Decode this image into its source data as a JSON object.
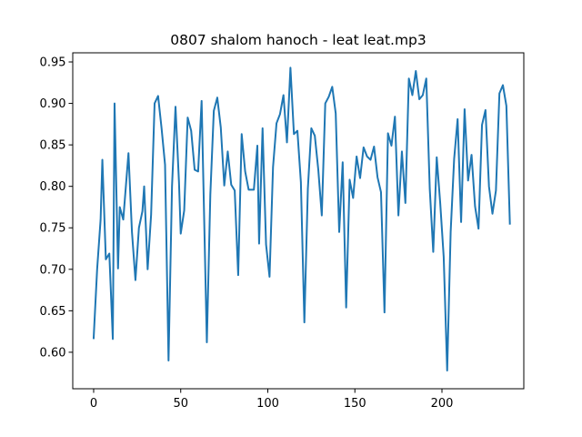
{
  "chart_data": {
    "type": "line",
    "title": "0807 shalom hanoch - leat leat.mp3",
    "xlabel": "",
    "ylabel": "",
    "xlim": [
      -12,
      247
    ],
    "ylim": [
      0.556,
      0.961
    ],
    "x_ticks": [
      0,
      50,
      100,
      150,
      200
    ],
    "y_ticks": [
      0.6,
      0.65,
      0.7,
      0.75,
      0.8,
      0.85,
      0.9,
      0.95
    ],
    "x_tick_labels": [
      "0",
      "50",
      "100",
      "150",
      "200"
    ],
    "y_tick_labels": [
      "0.60",
      "0.65",
      "0.70",
      "0.75",
      "0.80",
      "0.85",
      "0.90",
      "0.95"
    ],
    "grid": false,
    "legend": "none",
    "series": [
      {
        "color": "#1f77b4",
        "points": [
          [
            0,
            0.617
          ],
          [
            2,
            0.7
          ],
          [
            4,
            0.76
          ],
          [
            5,
            0.832
          ],
          [
            7,
            0.712
          ],
          [
            9,
            0.719
          ],
          [
            11,
            0.616
          ],
          [
            12,
            0.9
          ],
          [
            14,
            0.701
          ],
          [
            15,
            0.775
          ],
          [
            17,
            0.76
          ],
          [
            20,
            0.84
          ],
          [
            22,
            0.745
          ],
          [
            24,
            0.687
          ],
          [
            26,
            0.75
          ],
          [
            28,
            0.77
          ],
          [
            29,
            0.8
          ],
          [
            31,
            0.7
          ],
          [
            33,
            0.766
          ],
          [
            35,
            0.9
          ],
          [
            37,
            0.909
          ],
          [
            39,
            0.87
          ],
          [
            41,
            0.826
          ],
          [
            43,
            0.59
          ],
          [
            45,
            0.8
          ],
          [
            47,
            0.896
          ],
          [
            49,
            0.805
          ],
          [
            50,
            0.743
          ],
          [
            52,
            0.771
          ],
          [
            54,
            0.883
          ],
          [
            56,
            0.867
          ],
          [
            58,
            0.82
          ],
          [
            60,
            0.818
          ],
          [
            62,
            0.903
          ],
          [
            65,
            0.612
          ],
          [
            67,
            0.79
          ],
          [
            69,
            0.891
          ],
          [
            71,
            0.907
          ],
          [
            73,
            0.871
          ],
          [
            75,
            0.801
          ],
          [
            77,
            0.842
          ],
          [
            79,
            0.802
          ],
          [
            81,
            0.795
          ],
          [
            83,
            0.693
          ],
          [
            85,
            0.863
          ],
          [
            87,
            0.818
          ],
          [
            89,
            0.796
          ],
          [
            92,
            0.796
          ],
          [
            94,
            0.849
          ],
          [
            95,
            0.731
          ],
          [
            97,
            0.87
          ],
          [
            99,
            0.73
          ],
          [
            101,
            0.691
          ],
          [
            103,
            0.823
          ],
          [
            105,
            0.876
          ],
          [
            107,
            0.887
          ],
          [
            109,
            0.91
          ],
          [
            111,
            0.853
          ],
          [
            113,
            0.943
          ],
          [
            115,
            0.863
          ],
          [
            117,
            0.867
          ],
          [
            119,
            0.805
          ],
          [
            121,
            0.636
          ],
          [
            123,
            0.797
          ],
          [
            125,
            0.87
          ],
          [
            127,
            0.861
          ],
          [
            129,
            0.82
          ],
          [
            131,
            0.765
          ],
          [
            133,
            0.9
          ],
          [
            135,
            0.908
          ],
          [
            137,
            0.92
          ],
          [
            139,
            0.888
          ],
          [
            141,
            0.745
          ],
          [
            143,
            0.829
          ],
          [
            145,
            0.654
          ],
          [
            147,
            0.808
          ],
          [
            149,
            0.786
          ],
          [
            151,
            0.836
          ],
          [
            153,
            0.81
          ],
          [
            155,
            0.847
          ],
          [
            157,
            0.836
          ],
          [
            159,
            0.832
          ],
          [
            161,
            0.848
          ],
          [
            163,
            0.811
          ],
          [
            165,
            0.793
          ],
          [
            167,
            0.648
          ],
          [
            169,
            0.864
          ],
          [
            171,
            0.849
          ],
          [
            173,
            0.884
          ],
          [
            175,
            0.765
          ],
          [
            177,
            0.842
          ],
          [
            179,
            0.78
          ],
          [
            181,
            0.93
          ],
          [
            183,
            0.91
          ],
          [
            185,
            0.939
          ],
          [
            187,
            0.905
          ],
          [
            189,
            0.91
          ],
          [
            191,
            0.93
          ],
          [
            193,
            0.797
          ],
          [
            195,
            0.721
          ],
          [
            197,
            0.835
          ],
          [
            199,
            0.78
          ],
          [
            201,
            0.715
          ],
          [
            203,
            0.578
          ],
          [
            205,
            0.745
          ],
          [
            207,
            0.833
          ],
          [
            209,
            0.881
          ],
          [
            211,
            0.757
          ],
          [
            213,
            0.893
          ],
          [
            215,
            0.807
          ],
          [
            217,
            0.838
          ],
          [
            219,
            0.776
          ],
          [
            221,
            0.749
          ],
          [
            223,
            0.874
          ],
          [
            225,
            0.892
          ],
          [
            227,
            0.8
          ],
          [
            229,
            0.767
          ],
          [
            231,
            0.795
          ],
          [
            233,
            0.912
          ],
          [
            235,
            0.922
          ],
          [
            237,
            0.897
          ],
          [
            239,
            0.755
          ]
        ]
      }
    ]
  }
}
